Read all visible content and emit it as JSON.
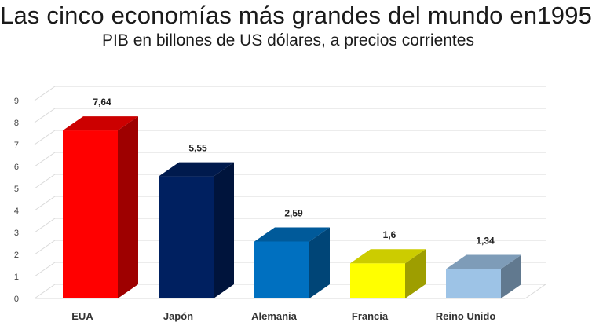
{
  "chart_data": {
    "type": "bar",
    "title": "Las cinco economías más grandes del mundo en1995",
    "subtitle": "PIB en billones de US dólares, a precios corrientes",
    "categories": [
      "EUA",
      "Japón",
      "Alemania",
      "Francia",
      "Reino Unido"
    ],
    "values": [
      7.64,
      5.55,
      2.59,
      1.6,
      1.34
    ],
    "value_labels": [
      "7,64",
      "5,55",
      "2,59",
      "1,6",
      "1,34"
    ],
    "ylim": [
      0,
      9
    ],
    "yticks": [
      "0",
      "1",
      "2",
      "3",
      "4",
      "5",
      "6",
      "7",
      "8",
      "9"
    ],
    "grid": true,
    "style": "3d-column",
    "colors": {
      "EUA": "#ff0000",
      "Japón": "#002060",
      "Alemania": "#0070c0",
      "Francia": "#ffff00",
      "Reino Unido": "#9dc3e6"
    }
  }
}
